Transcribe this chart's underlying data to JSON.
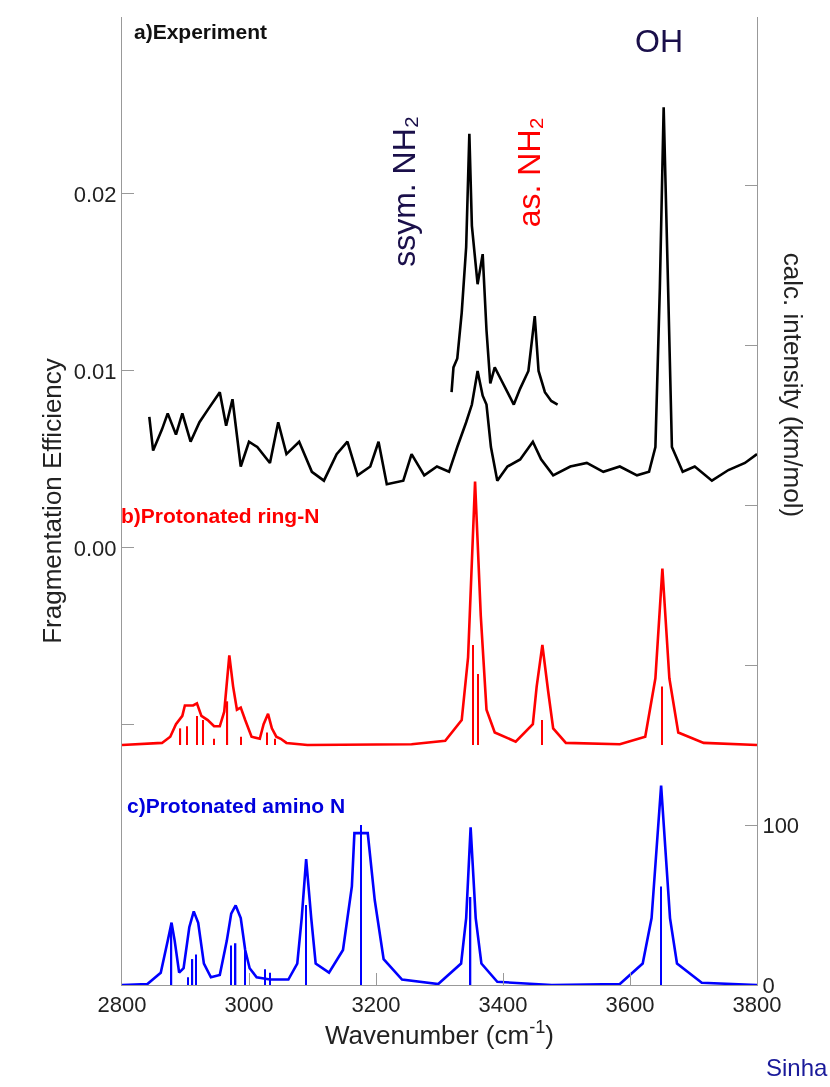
{
  "chart_data": {
    "type": "line",
    "xlabel": "Wavenumber (cm$^{-1}$)",
    "ylabel": "Fragmentation Efficiency",
    "y2label": "calc. intensity (km/mol)",
    "xlim": [
      2800,
      3800
    ],
    "xticks": [
      2800,
      3000,
      3200,
      3400,
      3600,
      3800
    ],
    "ylim": [
      -0.0247,
      0.03
    ],
    "yticks": [
      {
        "value": -0.01,
        "label": null
      },
      {
        "value": 0.0,
        "label": "0.00"
      },
      0.01,
      0.02
    ],
    "y2lim": [
      0,
      605
    ],
    "y2ticks": [
      0,
      100,
      {
        "value": 200,
        "label": null
      },
      {
        "value": 300,
        "label": null
      },
      {
        "value": 400,
        "label": null
      },
      {
        "value": 500,
        "label": null
      }
    ],
    "annotations": [
      "a)Experiment",
      "OH",
      "ssym. NH₂",
      "as. NH₂",
      "b)Protonated ring-N",
      "c)Protonated amino N",
      "Sinha"
    ],
    "series": [
      {
        "color": "#000000",
        "x": [
          2843,
          2849,
          2863,
          2872,
          2885,
          2895,
          2908,
          2922,
          2935,
          2954,
          2964,
          2974,
          2987,
          3000,
          3013,
          3033,
          3046,
          3059,
          3079,
          3099,
          3118,
          3138,
          3155,
          3171,
          3191,
          3204,
          3217,
          3243,
          3256,
          3276,
          3296,
          3315,
          3328,
          3342,
          3351,
          3360,
          3368,
          3374,
          3381,
          3391,
          3407,
          3427,
          3447,
          3460,
          3479,
          3506,
          3532,
          3558,
          3584,
          3611,
          3630,
          3640,
          3647,
          3653,
          3660,
          3666,
          3683,
          3702,
          3729,
          3755,
          3781,
          3800
        ],
        "values": [
          0.0074,
          0.0055,
          0.0067,
          0.0076,
          0.0064,
          0.0076,
          0.006,
          0.0071,
          0.0078,
          0.0088,
          0.0069,
          0.0084,
          0.0046,
          0.006,
          0.0057,
          0.0048,
          0.0071,
          0.0053,
          0.006,
          0.0043,
          0.0038,
          0.0053,
          0.006,
          0.0041,
          0.0046,
          0.006,
          0.0036,
          0.0038,
          0.0053,
          0.0041,
          0.0046,
          0.0043,
          0.0057,
          0.0071,
          0.0081,
          0.01,
          0.0086,
          0.0081,
          0.0057,
          0.0038,
          0.0046,
          0.005,
          0.006,
          0.005,
          0.0041,
          0.0046,
          0.0048,
          0.0043,
          0.0046,
          0.0041,
          0.0043,
          0.0057,
          0.0147,
          0.0249,
          0.0147,
          0.0057,
          0.0043,
          0.0046,
          0.0038,
          0.0044,
          0.0048,
          0.0053
        ]
      },
      {
        "color": "#000000",
        "x": [
          3319,
          3322,
          3328,
          3335,
          3342,
          3347,
          3351,
          3360,
          3368,
          3374,
          3380,
          3387,
          3397,
          3407,
          3417,
          3427,
          3440,
          3450,
          3456,
          3466,
          3476,
          3486
        ],
        "values": [
          0.0088,
          0.0102,
          0.0107,
          0.0133,
          0.017,
          0.0234,
          0.0182,
          0.0149,
          0.0166,
          0.0123,
          0.0093,
          0.0102,
          0.0095,
          0.0088,
          0.0081,
          0.009,
          0.01,
          0.0131,
          0.01,
          0.0088,
          0.0083,
          0.0081
        ]
      },
      {
        "color": "#ff0000",
        "axis": "y2",
        "x": [
          2800,
          2863,
          2876,
          2885,
          2895,
          2899,
          2912,
          2918,
          2925,
          2935,
          2945,
          2954,
          2961,
          2969,
          2975,
          2981,
          2987,
          2994,
          3004,
          3017,
          3023,
          3030,
          3036,
          3043,
          3050,
          3059,
          3092,
          3256,
          3309,
          3335,
          3345,
          3356,
          3365,
          3374,
          3387,
          3420,
          3447,
          3453,
          3462,
          3471,
          3479,
          3499,
          3584,
          3624,
          3640,
          3651,
          3662,
          3676,
          3716,
          3800
        ],
        "values": [
          150,
          151.3,
          155.2,
          163,
          168.2,
          174.7,
          174.7,
          176,
          168.2,
          165.6,
          161.7,
          161.7,
          170.8,
          206,
          186.5,
          172.1,
          173.4,
          165.6,
          155.2,
          153.9,
          163,
          169.5,
          160.4,
          155.2,
          153.9,
          151.3,
          150,
          150.5,
          152.6,
          165.6,
          204.7,
          314.6,
          230.7,
          172.1,
          157.8,
          152.1,
          163,
          186.5,
          212.5,
          183.9,
          160.4,
          151.3,
          150.5,
          155.2,
          191.7,
          260.2,
          191.7,
          157.8,
          151.3,
          150
        ]
      },
      {
        "type": "bar",
        "color": "#ff0000",
        "axis": "y2",
        "x": [
          2892,
          2902,
          2918,
          2928,
          2945,
          2966,
          2987,
          3028,
          3041,
          3353,
          3361,
          3461,
          3650
        ],
        "base": [
          150,
          150,
          150,
          150,
          150,
          150,
          150,
          150,
          150,
          150,
          150,
          150,
          150
        ],
        "values": [
          10.4,
          11.7,
          18.2,
          15.6,
          3.9,
          27.3,
          5.2,
          7.8,
          3.9,
          62.5,
          44.3,
          15.6,
          36.5
        ]
      },
      {
        "color": "#0000ff",
        "axis": "y2",
        "x": [
          2800,
          2840,
          2861,
          2872,
          2878,
          2883,
          2890,
          2897,
          2906,
          2913,
          2920,
          2929,
          2940,
          2954,
          2965,
          2972,
          2979,
          2987,
          2994,
          3001,
          3012,
          3033,
          3062,
          3076,
          3083,
          3090,
          3098,
          3105,
          3126,
          3148,
          3162,
          3166,
          3187,
          3198,
          3212,
          3241,
          3298,
          3334,
          3342,
          3349,
          3357,
          3366,
          3391,
          3477,
          3584,
          3620,
          3634,
          3649,
          3663,
          3674,
          3713,
          3800
        ],
        "values": [
          0,
          0.6,
          7.7,
          27.6,
          38.9,
          27.6,
          7.7,
          10.5,
          36.1,
          46,
          38.9,
          13.4,
          4.8,
          6.3,
          27.6,
          44.6,
          49.7,
          41.8,
          21.9,
          10.5,
          4.8,
          3.4,
          3.4,
          13.4,
          41.8,
          78.7,
          41.8,
          13.4,
          7.7,
          21.9,
          61.6,
          94.9,
          94.9,
          53.1,
          16.2,
          3.4,
          0.6,
          13.4,
          41.8,
          98.6,
          41.8,
          13.4,
          2,
          0,
          0.6,
          13.4,
          41.8,
          124.7,
          41.8,
          13.4,
          1.4,
          0
        ]
      },
      {
        "type": "bar",
        "color": "#0000ff",
        "axis": "y2",
        "x": [
          2878,
          2904,
          2911,
          2917,
          2972,
          2979,
          2994,
          3025,
          3033,
          3090,
          3176,
          3349,
          3649
        ],
        "values": [
          38.9,
          4.8,
          16.2,
          19.1,
          24.7,
          26.1,
          21.9,
          9.9,
          7.7,
          50,
          100,
          55,
          61.6
        ]
      }
    ]
  }
}
